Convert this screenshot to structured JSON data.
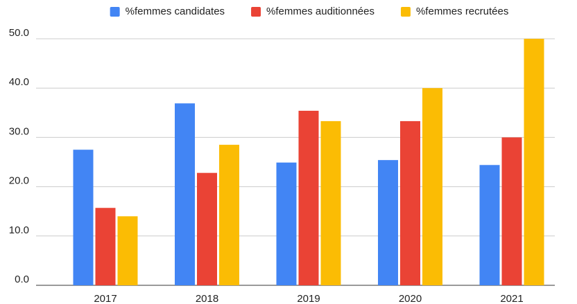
{
  "chart_data": {
    "type": "bar",
    "categories": [
      "2017",
      "2018",
      "2019",
      "2020",
      "2021"
    ],
    "series": [
      {
        "name": "%femmes candidates",
        "color": "#4285f4",
        "values": [
          27.5,
          36.9,
          24.9,
          25.4,
          24.4
        ]
      },
      {
        "name": "%femmes auditionnées",
        "color": "#ea4335",
        "values": [
          15.7,
          22.8,
          35.4,
          33.3,
          30.0
        ]
      },
      {
        "name": "%femmes recrutées",
        "color": "#fbbc04",
        "values": [
          14.0,
          28.5,
          33.3,
          40.0,
          50.0
        ]
      }
    ],
    "ylim": [
      0,
      50
    ],
    "yticks": [
      {
        "value": 0,
        "label": "0.0"
      },
      {
        "value": 10,
        "label": "10.0"
      },
      {
        "value": 20,
        "label": "20.0"
      },
      {
        "value": 30,
        "label": "30.0"
      },
      {
        "value": 40,
        "label": "40.0"
      },
      {
        "value": 50,
        "label": "50.0"
      }
    ],
    "grid": true,
    "legend": "top"
  }
}
